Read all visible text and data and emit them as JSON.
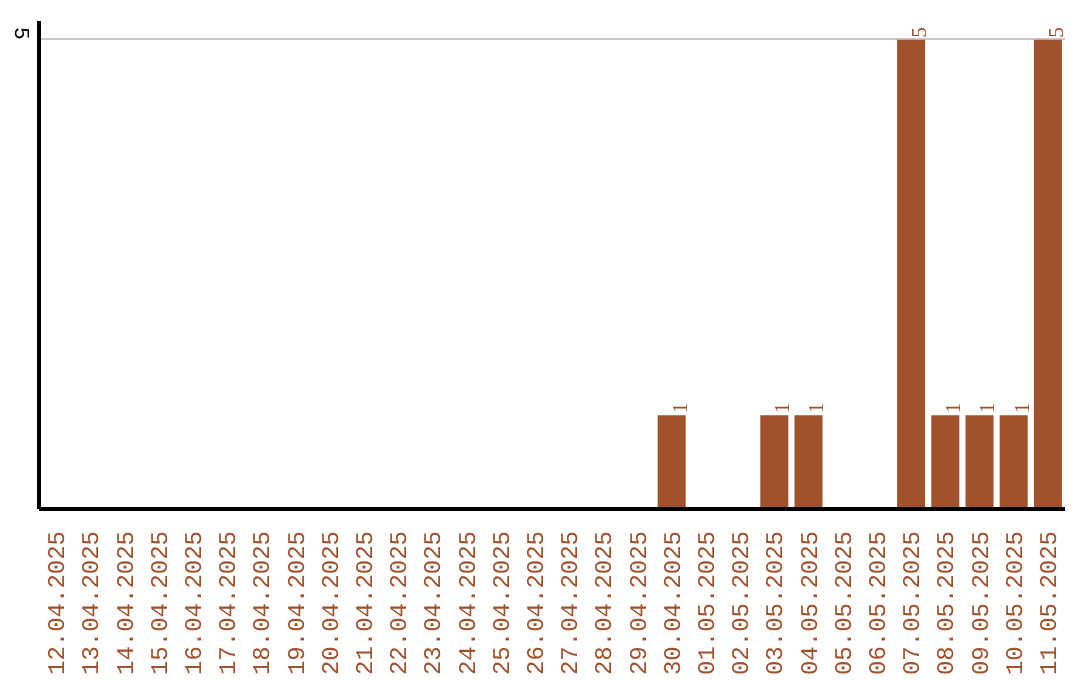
{
  "chart_data": {
    "type": "bar",
    "categories": [
      "12.04.2025",
      "13.04.2025",
      "14.04.2025",
      "15.04.2025",
      "16.04.2025",
      "17.04.2025",
      "18.04.2025",
      "19.04.2025",
      "20.04.2025",
      "21.04.2025",
      "22.04.2025",
      "23.04.2025",
      "24.04.2025",
      "25.04.2025",
      "26.04.2025",
      "27.04.2025",
      "28.04.2025",
      "29.04.2025",
      "30.04.2025",
      "01.05.2025",
      "02.05.2025",
      "03.05.2025",
      "04.05.2025",
      "05.05.2025",
      "06.05.2025",
      "07.05.2025",
      "08.05.2025",
      "09.05.2025",
      "10.05.2025",
      "11.05.2025"
    ],
    "values": [
      null,
      null,
      null,
      null,
      null,
      null,
      null,
      null,
      null,
      null,
      null,
      null,
      null,
      null,
      null,
      null,
      null,
      null,
      1,
      null,
      null,
      1,
      1,
      null,
      null,
      5,
      1,
      1,
      1,
      5
    ],
    "data_labels": true,
    "color": "#a0522d",
    "ylim": [
      0,
      5.2
    ],
    "yticks": [
      5
    ],
    "grid": "y"
  }
}
